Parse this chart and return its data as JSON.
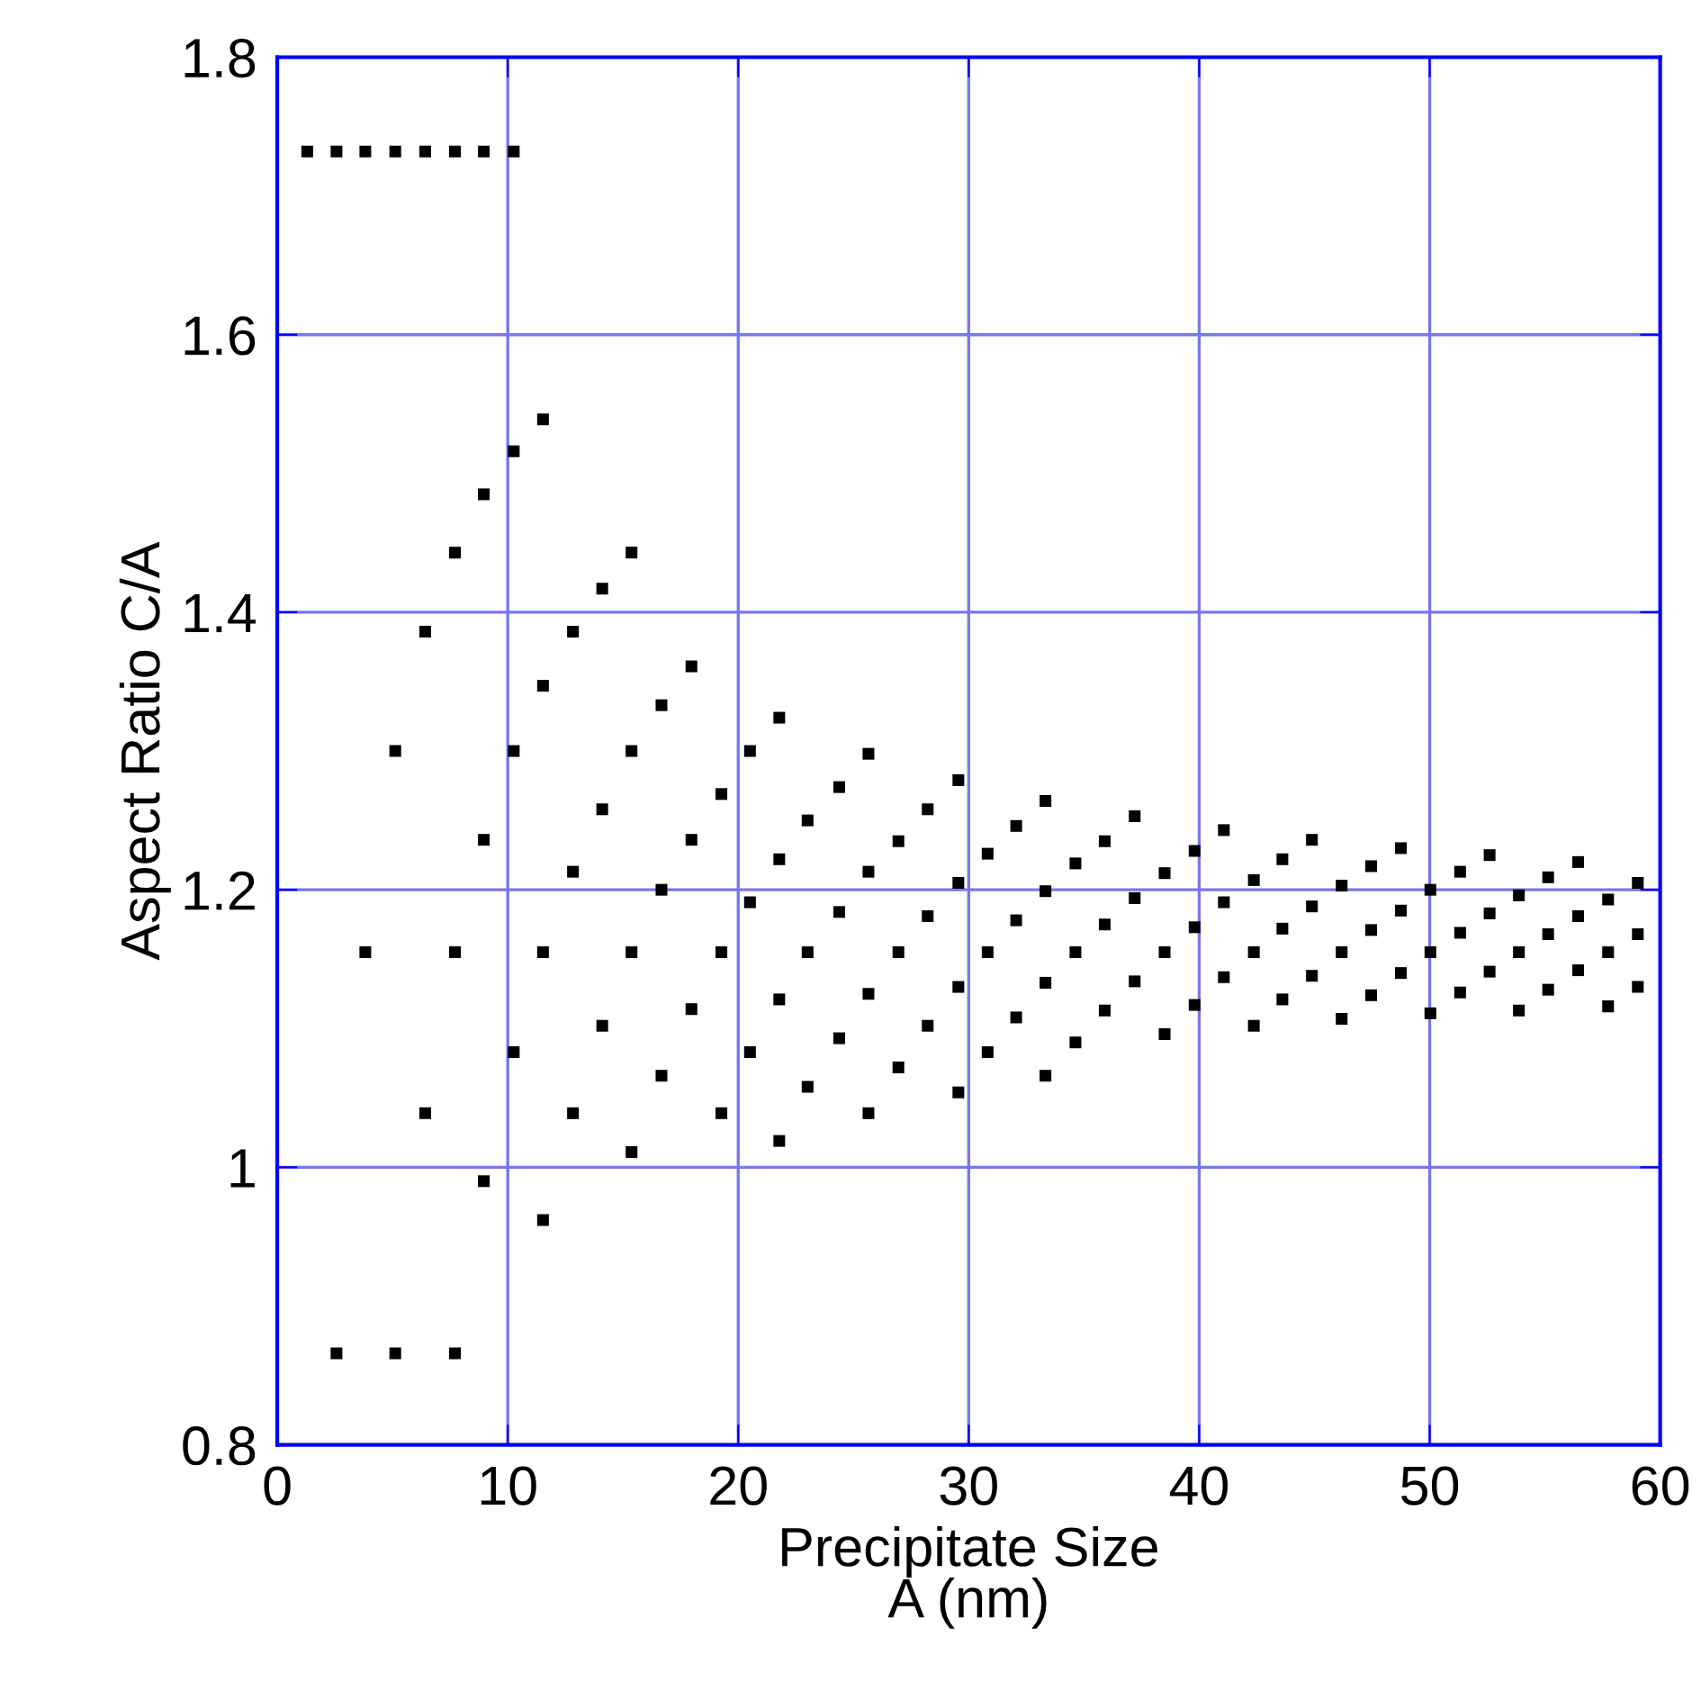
{
  "chart_data": {
    "type": "scatter",
    "xlabel": "Precipitate Size\nA (nm)",
    "ylabel": "Aspect Ratio C/A",
    "xlim": [
      0,
      60
    ],
    "xticks": [
      0,
      10,
      20,
      30,
      40,
      50,
      60
    ],
    "ylim": [
      0.8,
      1.8
    ],
    "yticks": [
      0.8,
      1,
      1.2,
      1.4,
      1.6,
      1.8
    ],
    "grid": true,
    "marker": "square",
    "series": [
      {
        "color": "#000000",
        "x": [
          1.3,
          2.57,
          2.57,
          3.82,
          3.82,
          5.12,
          5.12,
          5.12,
          6.42,
          6.42,
          6.42,
          7.71,
          7.71,
          7.71,
          7.71,
          8.96,
          8.96,
          8.96,
          8.96,
          10.26,
          10.26,
          10.26,
          10.26,
          11.53,
          11.53,
          11.53,
          11.53,
          12.83,
          12.83,
          12.83,
          14.1,
          14.1,
          14.1,
          15.37,
          15.37,
          15.37,
          15.37,
          16.67,
          16.67,
          16.67,
          17.97,
          17.97,
          17.97,
          19.27,
          19.27,
          19.27,
          20.51,
          20.51,
          20.51,
          21.78,
          21.78,
          21.78,
          21.78,
          23.01,
          23.01,
          23.01,
          24.38,
          24.38,
          24.38,
          25.65,
          25.65,
          25.65,
          25.65,
          26.95,
          26.95,
          26.95,
          28.22,
          28.22,
          28.22,
          29.55,
          29.55,
          29.55,
          29.55,
          30.82,
          30.82,
          30.82,
          32.06,
          32.06,
          32.06,
          33.33,
          33.33,
          33.33,
          33.33,
          34.63,
          34.63,
          34.63,
          35.9,
          35.9,
          35.9,
          37.2,
          37.2,
          37.2,
          38.5,
          38.5,
          38.5,
          39.8,
          39.8,
          39.8,
          41.07,
          41.07,
          41.07,
          42.37,
          42.37,
          42.37,
          43.61,
          43.61,
          43.61,
          44.89,
          44.89,
          44.89,
          46.18,
          46.18,
          46.18,
          47.46,
          47.46,
          47.46,
          48.75,
          48.75,
          48.75,
          50.03,
          50.03,
          50.03,
          51.32,
          51.32,
          51.32,
          52.6,
          52.6,
          52.6,
          53.87,
          53.87,
          53.87,
          55.14,
          55.14,
          55.14,
          56.44,
          56.44,
          56.44,
          57.74,
          57.74,
          57.74,
          59.03,
          59.03,
          59.03
        ],
        "values": [
          1.732,
          1.732,
          0.866,
          1.732,
          1.155,
          1.732,
          1.3,
          0.866,
          1.732,
          1.386,
          1.039,
          1.732,
          1.443,
          1.155,
          0.866,
          1.732,
          1.485,
          1.236,
          0.99,
          1.732,
          1.516,
          1.3,
          1.083,
          1.539,
          1.347,
          1.155,
          0.962,
          1.386,
          1.213,
          1.039,
          1.417,
          1.258,
          1.102,
          1.443,
          1.3,
          1.155,
          1.011,
          1.333,
          1.2,
          1.066,
          1.361,
          1.236,
          1.114,
          1.269,
          1.155,
          1.039,
          1.3,
          1.191,
          1.083,
          1.324,
          1.222,
          1.121,
          1.019,
          1.25,
          1.155,
          1.058,
          1.274,
          1.184,
          1.093,
          1.298,
          1.213,
          1.125,
          1.039,
          1.235,
          1.155,
          1.072,
          1.258,
          1.181,
          1.102,
          1.279,
          1.205,
          1.13,
          1.054,
          1.226,
          1.155,
          1.083,
          1.246,
          1.178,
          1.108,
          1.264,
          1.199,
          1.133,
          1.066,
          1.219,
          1.155,
          1.09,
          1.235,
          1.175,
          1.113,
          1.253,
          1.194,
          1.134,
          1.212,
          1.155,
          1.096,
          1.228,
          1.173,
          1.117,
          1.243,
          1.191,
          1.137,
          1.207,
          1.155,
          1.102,
          1.222,
          1.172,
          1.121,
          1.236,
          1.188,
          1.138,
          1.203,
          1.155,
          1.107,
          1.217,
          1.171,
          1.124,
          1.23,
          1.185,
          1.14,
          1.2,
          1.155,
          1.111,
          1.213,
          1.169,
          1.126,
          1.225,
          1.183,
          1.141,
          1.196,
          1.155,
          1.113,
          1.209,
          1.168,
          1.128,
          1.22,
          1.181,
          1.142,
          1.193,
          1.155,
          1.116,
          1.205,
          1.168,
          1.13
        ]
      }
    ]
  }
}
